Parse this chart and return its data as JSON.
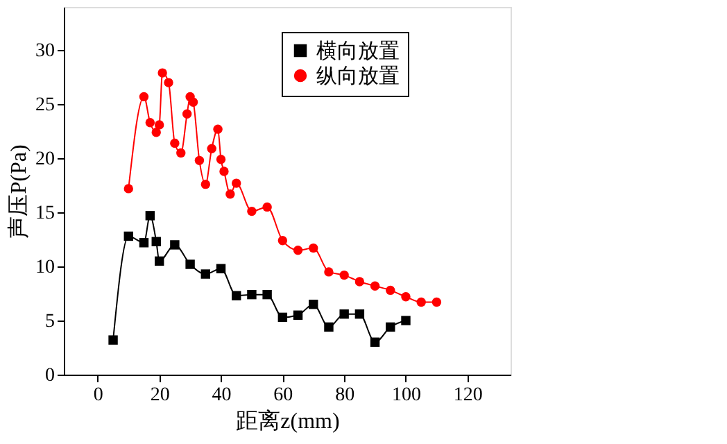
{
  "chart_data": {
    "type": "line",
    "xlabel": "距离z(mm)",
    "ylabel": "声压P(Pa)",
    "xlim": [
      -11,
      134
    ],
    "ylim": [
      0,
      34
    ],
    "xticks": [
      0,
      20,
      40,
      60,
      80,
      100,
      120
    ],
    "yticks": [
      0,
      5,
      10,
      15,
      20,
      25,
      30
    ],
    "grid": false,
    "legend": "top right",
    "line_style": "solid",
    "series": [
      {
        "name": "横向放置",
        "color": "#000000",
        "marker": "square",
        "x": [
          5,
          10,
          15,
          17,
          19,
          20,
          25,
          30,
          35,
          40,
          45,
          50,
          55,
          60,
          65,
          70,
          75,
          80,
          85,
          90,
          95,
          100
        ],
        "values": [
          3.2,
          12.8,
          12.2,
          14.7,
          12.3,
          10.5,
          12.0,
          10.2,
          9.3,
          9.8,
          7.3,
          7.4,
          7.4,
          5.3,
          5.5,
          6.5,
          4.4,
          5.6,
          5.6,
          3.0,
          4.4,
          5.0
        ]
      },
      {
        "name": "纵向放置",
        "color": "#ff0000",
        "marker": "circle",
        "x": [
          10,
          15,
          17,
          19,
          20,
          21,
          23,
          25,
          27,
          29,
          30,
          31,
          33,
          35,
          37,
          39,
          40,
          41,
          43,
          45,
          50,
          55,
          60,
          65,
          70,
          75,
          80,
          85,
          90,
          95,
          100,
          105,
          110
        ],
        "values": [
          17.2,
          25.7,
          23.3,
          22.4,
          23.1,
          27.9,
          27.0,
          21.4,
          20.5,
          24.1,
          25.7,
          25.2,
          19.8,
          17.6,
          20.9,
          22.7,
          19.9,
          18.8,
          16.7,
          17.7,
          15.1,
          15.5,
          12.4,
          11.5,
          11.7,
          9.5,
          9.2,
          8.6,
          8.2,
          7.8,
          7.2,
          6.7,
          6.7
        ]
      }
    ]
  }
}
